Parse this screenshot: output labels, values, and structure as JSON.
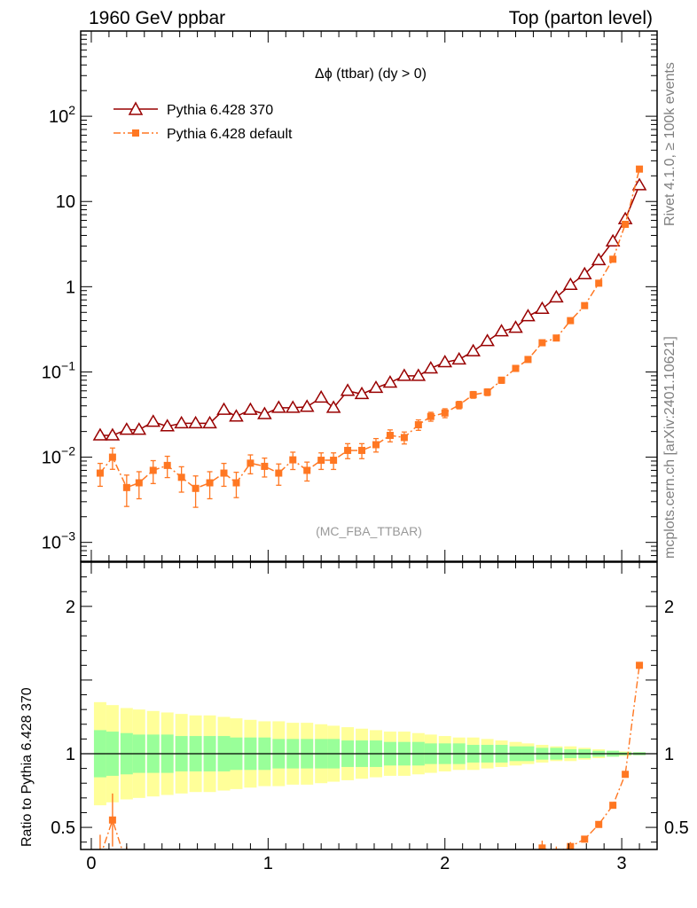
{
  "header": {
    "left": "1960 GeV ppbar",
    "right": "Top (parton level)"
  },
  "side_labels": {
    "rivet": "Rivet 4.1.0, ≥ 100k events",
    "mcplots": "mcplots.cern.ch [arXiv:2401.10621]"
  },
  "analysis": "(MC_FBA_TTBAR)",
  "ratio_ylabel": "Ratio to Pythia 6.428 370",
  "chart_data": [
    {
      "type": "line",
      "panel": "main",
      "title": "Δϕ (ttbar) (dy > 0)",
      "yscale": "log",
      "ylim": [
        0.0006,
        1000
      ],
      "xlim": [
        -0.06,
        3.2
      ],
      "yticks": [
        {
          "value": 0.001,
          "base": "10",
          "exp": "−3"
        },
        {
          "value": 0.01,
          "base": "10",
          "exp": "−2"
        },
        {
          "value": 0.1,
          "base": "10",
          "exp": "−1"
        },
        {
          "value": 1,
          "base": "1",
          "exp": ""
        },
        {
          "value": 10,
          "base": "10",
          "exp": ""
        },
        {
          "value": 100,
          "base": "10",
          "exp": "2"
        }
      ],
      "series": [
        {
          "name": "Pythia 6.428 370",
          "color": "#990000",
          "marker": "open-triangle",
          "x": [
            0.05,
            0.12,
            0.2,
            0.27,
            0.35,
            0.43,
            0.51,
            0.59,
            0.67,
            0.75,
            0.82,
            0.9,
            0.98,
            1.06,
            1.14,
            1.22,
            1.3,
            1.37,
            1.45,
            1.53,
            1.61,
            1.69,
            1.77,
            1.85,
            1.92,
            2.0,
            2.08,
            2.16,
            2.24,
            2.32,
            2.4,
            2.47,
            2.55,
            2.63,
            2.71,
            2.79,
            2.87,
            2.95,
            3.02,
            3.1
          ],
          "y": [
            0.018,
            0.018,
            0.021,
            0.021,
            0.026,
            0.023,
            0.025,
            0.025,
            0.025,
            0.036,
            0.03,
            0.036,
            0.032,
            0.038,
            0.038,
            0.039,
            0.05,
            0.038,
            0.06,
            0.055,
            0.065,
            0.075,
            0.09,
            0.09,
            0.11,
            0.13,
            0.14,
            0.175,
            0.23,
            0.3,
            0.33,
            0.45,
            0.55,
            0.75,
            1.05,
            1.4,
            2.05,
            3.4,
            6.2,
            15.5
          ],
          "err": [
            0.08,
            0.08,
            0.07,
            0.07,
            0.07,
            0.07,
            0.06,
            0.06,
            0.06,
            0.06,
            0.06,
            0.06,
            0.05,
            0.05,
            0.05,
            0.05,
            0.05,
            0.05,
            0.04,
            0.04,
            0.04,
            0.04,
            0.04,
            0.04,
            0.03,
            0.03,
            0.03,
            0.03,
            0.03,
            0.03,
            0.03,
            0.02,
            0.02,
            0.02,
            0.02,
            0.02,
            0.02,
            0.02,
            0.01,
            0.01
          ]
        },
        {
          "name": "Pythia 6.428 default",
          "color": "#ff7722",
          "marker": "filled-square",
          "x": [
            0.05,
            0.12,
            0.2,
            0.27,
            0.35,
            0.43,
            0.51,
            0.59,
            0.67,
            0.75,
            0.82,
            0.9,
            0.98,
            1.06,
            1.14,
            1.22,
            1.3,
            1.37,
            1.45,
            1.53,
            1.61,
            1.69,
            1.77,
            1.85,
            1.92,
            2.0,
            2.08,
            2.16,
            2.24,
            2.32,
            2.4,
            2.47,
            2.55,
            2.63,
            2.71,
            2.79,
            2.87,
            2.95,
            3.02,
            3.1
          ],
          "y": [
            0.0065,
            0.01,
            0.0044,
            0.005,
            0.007,
            0.008,
            0.0058,
            0.0043,
            0.005,
            0.0065,
            0.005,
            0.0085,
            0.0078,
            0.0065,
            0.0093,
            0.007,
            0.0092,
            0.0092,
            0.012,
            0.012,
            0.014,
            0.018,
            0.017,
            0.024,
            0.03,
            0.033,
            0.041,
            0.054,
            0.058,
            0.08,
            0.11,
            0.14,
            0.22,
            0.25,
            0.4,
            0.6,
            1.1,
            2.1,
            5.4,
            24
          ],
          "err": [
            0.3,
            0.28,
            0.4,
            0.35,
            0.3,
            0.28,
            0.33,
            0.4,
            0.35,
            0.3,
            0.33,
            0.25,
            0.25,
            0.28,
            0.23,
            0.25,
            0.22,
            0.22,
            0.2,
            0.2,
            0.18,
            0.16,
            0.16,
            0.14,
            0.12,
            0.12,
            0.1,
            0.09,
            0.09,
            0.08,
            0.07,
            0.06,
            0.05,
            0.05,
            0.04,
            0.03,
            0.03,
            0.02,
            0.02,
            0.01
          ]
        }
      ]
    },
    {
      "type": "line",
      "panel": "ratio",
      "ylabel": "Ratio to Pythia 6.428 370",
      "ylim": [
        0.35,
        2.3
      ],
      "xlim": [
        -0.06,
        3.2
      ],
      "xticks": [
        0,
        1,
        2,
        3
      ],
      "yticks": [
        0.5,
        1,
        2
      ],
      "band_inner": [
        0.16,
        0.15,
        0.14,
        0.13,
        0.13,
        0.13,
        0.12,
        0.12,
        0.12,
        0.12,
        0.11,
        0.11,
        0.11,
        0.1,
        0.1,
        0.1,
        0.1,
        0.1,
        0.09,
        0.09,
        0.09,
        0.08,
        0.08,
        0.08,
        0.07,
        0.07,
        0.07,
        0.06,
        0.06,
        0.06,
        0.05,
        0.05,
        0.04,
        0.04,
        0.03,
        0.03,
        0.02,
        0.02,
        0.01,
        0.01
      ],
      "band_outer": [
        0.35,
        0.33,
        0.31,
        0.3,
        0.29,
        0.28,
        0.27,
        0.26,
        0.26,
        0.25,
        0.24,
        0.23,
        0.22,
        0.22,
        0.21,
        0.21,
        0.2,
        0.19,
        0.18,
        0.17,
        0.16,
        0.15,
        0.15,
        0.14,
        0.13,
        0.12,
        0.11,
        0.11,
        0.1,
        0.09,
        0.08,
        0.07,
        0.06,
        0.05,
        0.05,
        0.04,
        0.03,
        0.02,
        0.015,
        0.01
      ],
      "series": [
        {
          "name": "Pythia 6.428 default / Pythia 6.428 370",
          "color": "#ff7722",
          "x": [
            0.05,
            0.12,
            0.2,
            2.47,
            2.55,
            2.63,
            2.71,
            2.79,
            2.87,
            2.95,
            3.02,
            3.1
          ],
          "y": [
            0.3,
            0.55,
            0.25,
            0.3,
            0.36,
            0.33,
            0.37,
            0.42,
            0.52,
            0.65,
            0.86,
            1.6
          ],
          "err": [
            0.15,
            0.18,
            0.12,
            0.05,
            0.05,
            0.04,
            0.03,
            0.02,
            0.02,
            0.02,
            0.01,
            0.01
          ]
        }
      ]
    }
  ]
}
